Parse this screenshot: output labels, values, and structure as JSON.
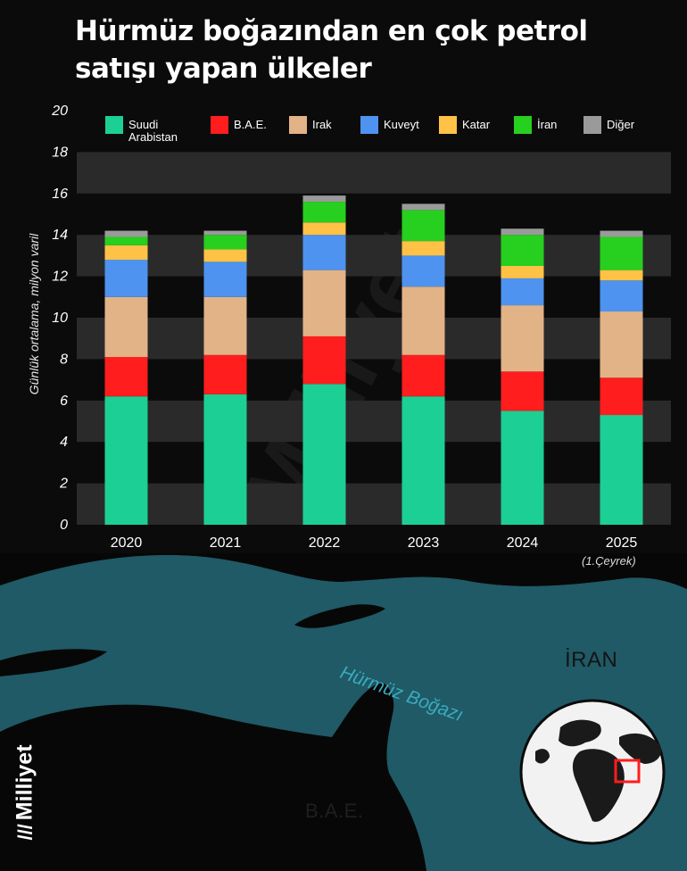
{
  "title_lines": [
    "Hürmüz boğazından en çok petrol",
    "satışı yapan ülkeler"
  ],
  "chart_data": {
    "type": "bar",
    "stacked": true,
    "categories": [
      "2020",
      "2021",
      "2022",
      "2023",
      "2024",
      "2025"
    ],
    "ylabel": "Günlük ortalama, milyon varil",
    "ylim": [
      0,
      20
    ],
    "yticks": [
      0,
      2,
      4,
      6,
      8,
      10,
      12,
      14,
      16,
      18,
      20
    ],
    "series": [
      {
        "name": "Suudi\nArabistan",
        "color": "#1ccf94",
        "values": [
          6.2,
          6.3,
          6.8,
          6.2,
          5.5,
          5.3
        ]
      },
      {
        "name": "B.A.E.",
        "color": "#ff1d1d",
        "values": [
          1.9,
          1.9,
          2.3,
          2.0,
          1.9,
          1.8
        ]
      },
      {
        "name": "Irak",
        "color": "#e2b386",
        "values": [
          2.9,
          2.8,
          3.2,
          3.3,
          3.2,
          3.2
        ]
      },
      {
        "name": "Kuveyt",
        "color": "#4e93ef",
        "values": [
          1.8,
          1.7,
          1.7,
          1.5,
          1.3,
          1.5
        ]
      },
      {
        "name": "Katar",
        "color": "#ffc246",
        "values": [
          0.7,
          0.6,
          0.6,
          0.7,
          0.6,
          0.5
        ]
      },
      {
        "name": "İran",
        "color": "#27cf1f",
        "values": [
          0.4,
          0.7,
          1.0,
          1.5,
          1.5,
          1.6
        ]
      },
      {
        "name": "Diğer",
        "color": "#9a9a9a",
        "values": [
          0.3,
          0.2,
          0.3,
          0.3,
          0.3,
          0.3
        ]
      }
    ]
  },
  "note_2025": "(1.Çeyrek)",
  "map": {
    "country_iran": "İRAN",
    "country_uae": "B.A.E.",
    "strait_label": "Hürmüz Boğazı"
  },
  "brand": "Milliyet",
  "colors": {
    "background": "#0b0b0b",
    "band": "#2a2a2a",
    "sea": "#1f5a66",
    "land": "#080808"
  }
}
